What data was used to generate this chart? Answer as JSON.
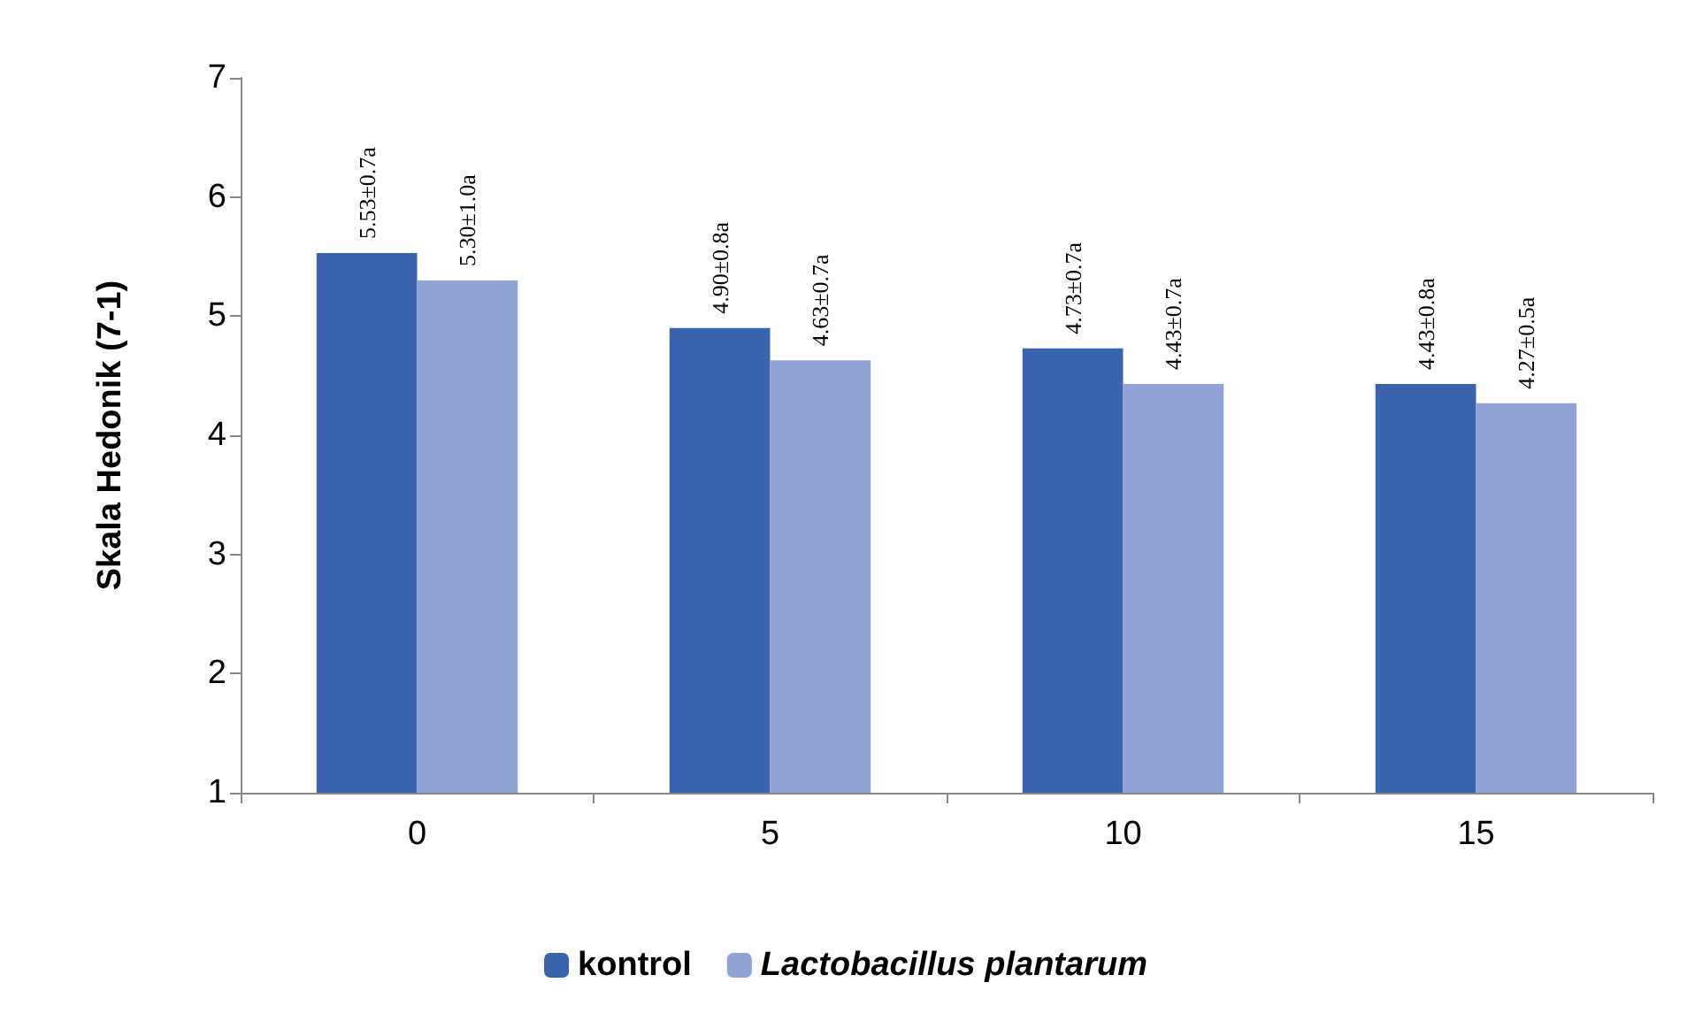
{
  "chart_data": {
    "type": "bar",
    "ylabel": "Skala Hedonik (7-1)",
    "categories": [
      "0",
      "5",
      "10",
      "15"
    ],
    "series": [
      {
        "name": "kontrol",
        "color": "#3b63ad",
        "values": [
          5.53,
          4.9,
          4.73,
          4.43
        ],
        "value_labels": [
          "5.53±0.7a",
          "4.90±0.8a",
          "4.73±0.7a",
          "4.43±0.8a"
        ]
      },
      {
        "name": "Lactobacillus plantarum",
        "color": "#8fa4d4",
        "values": [
          5.3,
          4.63,
          4.43,
          4.27
        ],
        "value_labels": [
          "5.30±1.0a",
          "4.63±0.7a",
          "4.43±0.7a",
          "4.27±0.5a"
        ]
      }
    ],
    "ylim": [
      1,
      7
    ],
    "yticks": [
      1,
      2,
      3,
      4,
      5,
      6,
      7
    ],
    "grid": false,
    "legend": "bottom"
  }
}
